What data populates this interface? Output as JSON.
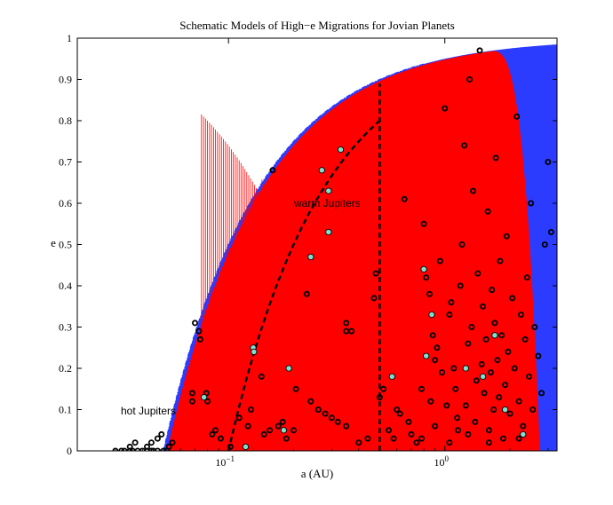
{
  "chart_data": {
    "type": "scatter",
    "title": "Schematic Models of High−e Migrations for Jovian Planets",
    "xlabel": "a (AU)",
    "ylabel": "e",
    "xscale": "log",
    "xlim": [
      0.02,
      3.3
    ],
    "ylim": [
      0,
      1
    ],
    "x_ticks": [
      {
        "value": 0.1,
        "base": "10",
        "exp": "−1"
      },
      {
        "value": 1,
        "base": "10",
        "exp": "0"
      }
    ],
    "y_ticks": [
      {
        "value": 0,
        "label": "0"
      },
      {
        "value": 0.1,
        "label": "0.1"
      },
      {
        "value": 0.2,
        "label": "0.2"
      },
      {
        "value": 0.3,
        "label": "0.3"
      },
      {
        "value": 0.4,
        "label": "0.4"
      },
      {
        "value": 0.5,
        "label": "0.5"
      },
      {
        "value": 0.6,
        "label": "0.6"
      },
      {
        "value": 0.7,
        "label": "0.7"
      },
      {
        "value": 0.8,
        "label": "0.8"
      },
      {
        "value": 0.9,
        "label": "0.9"
      },
      {
        "value": 1,
        "label": "1"
      }
    ],
    "annotations": [
      {
        "text": "hot Jupiters",
        "x": 0.033,
        "y": 0.1
      },
      {
        "text": "warm Jupiters",
        "x": 0.165,
        "y": 0.6
      }
    ],
    "regions": [
      {
        "name": "blue-envelope",
        "color": "#2b3cff",
        "periapse_au": 0.05
      },
      {
        "name": "red-envelope",
        "color": "#ff0000",
        "periapse_au": 0.052
      }
    ],
    "curves": [
      {
        "name": "dashed-periapse-track",
        "style": "dashed",
        "periapse_au": 0.1,
        "max_e": 0.89
      },
      {
        "name": "dashed-vertical",
        "style": "dashed",
        "x": 0.5,
        "y_range": [
          0,
          0.89
        ]
      }
    ],
    "series": [
      {
        "name": "black-circles",
        "marker": "circle-open",
        "color": "#000000",
        "points": [
          [
            0.03,
            0
          ],
          [
            0.032,
            0
          ],
          [
            0.033,
            0
          ],
          [
            0.035,
            0
          ],
          [
            0.036,
            0
          ],
          [
            0.038,
            0
          ],
          [
            0.04,
            0
          ],
          [
            0.042,
            0
          ],
          [
            0.044,
            0
          ],
          [
            0.045,
            0
          ],
          [
            0.047,
            0
          ],
          [
            0.05,
            0
          ],
          [
            0.052,
            0
          ],
          [
            0.035,
            0.01
          ],
          [
            0.037,
            0.02
          ],
          [
            0.042,
            0.01
          ],
          [
            0.044,
            0.02
          ],
          [
            0.047,
            0.03
          ],
          [
            0.049,
            0.04
          ],
          [
            0.053,
            0.01
          ],
          [
            0.055,
            0.02
          ],
          [
            0.068,
            0.14
          ],
          [
            0.068,
            0.12
          ],
          [
            0.07,
            0.31
          ],
          [
            0.073,
            0.29
          ],
          [
            0.074,
            0.27
          ],
          [
            0.079,
            0.14
          ],
          [
            0.08,
            0.12
          ],
          [
            0.084,
            0.04
          ],
          [
            0.087,
            0.05
          ],
          [
            0.092,
            0.03
          ],
          [
            0.102,
            0.01
          ],
          [
            0.112,
            0.08
          ],
          [
            0.123,
            0.06
          ],
          [
            0.127,
            0.1
          ],
          [
            0.142,
            0.18
          ],
          [
            0.146,
            0.04
          ],
          [
            0.155,
            0.05
          ],
          [
            0.16,
            0.68
          ],
          [
            0.17,
            0.06
          ],
          [
            0.178,
            0.07
          ],
          [
            0.185,
            0.03
          ],
          [
            0.2,
            0.05
          ],
          [
            0.205,
            0.15
          ],
          [
            0.23,
            0.38
          ],
          [
            0.24,
            0.12
          ],
          [
            0.26,
            0.1
          ],
          [
            0.28,
            0.09
          ],
          [
            0.3,
            0.08
          ],
          [
            0.32,
            0.07
          ],
          [
            0.35,
            0.06
          ],
          [
            0.35,
            0.31
          ],
          [
            0.35,
            0.29
          ],
          [
            0.37,
            0.29
          ],
          [
            0.4,
            0.02
          ],
          [
            0.44,
            0.03
          ],
          [
            0.47,
            0.37
          ],
          [
            0.48,
            0.43
          ],
          [
            0.5,
            0.13
          ],
          [
            0.52,
            0.15
          ],
          [
            0.55,
            0.05
          ],
          [
            0.58,
            0.03
          ],
          [
            0.6,
            0.1
          ],
          [
            0.62,
            0.09
          ],
          [
            0.65,
            0.61
          ],
          [
            0.68,
            0.07
          ],
          [
            0.7,
            0.04
          ],
          [
            0.74,
            0.02
          ],
          [
            0.78,
            0.03
          ],
          [
            0.8,
            0.55
          ],
          [
            0.82,
            0.42
          ],
          [
            0.85,
            0.38
          ],
          [
            0.88,
            0.28
          ],
          [
            0.9,
            0.22
          ],
          [
            0.92,
            0.25
          ],
          [
            0.95,
            0.46
          ],
          [
            0.97,
            0.19
          ],
          [
            1,
            0.83
          ],
          [
            1.02,
            0.11
          ],
          [
            1.05,
            0.33
          ],
          [
            1.07,
            0.36
          ],
          [
            1.1,
            0.2
          ],
          [
            1.12,
            0.15
          ],
          [
            1.14,
            0.08
          ],
          [
            1.18,
            0.4
          ],
          [
            1.2,
            0.5
          ],
          [
            1.23,
            0.74
          ],
          [
            1.25,
            0.11
          ],
          [
            1.28,
            0.26
          ],
          [
            1.3,
            0.9
          ],
          [
            1.33,
            0.3
          ],
          [
            1.35,
            0.63
          ],
          [
            1.38,
            0.07
          ],
          [
            1.4,
            0.17
          ],
          [
            1.42,
            0.43
          ],
          [
            1.45,
            0.97
          ],
          [
            1.48,
            0.21
          ],
          [
            1.5,
            0.35
          ],
          [
            1.52,
            0.14
          ],
          [
            1.55,
            0.27
          ],
          [
            1.58,
            0.58
          ],
          [
            1.6,
            0.05
          ],
          [
            1.63,
            0.19
          ],
          [
            1.65,
            0.39
          ],
          [
            1.68,
            0.1
          ],
          [
            1.7,
            0.31
          ],
          [
            1.72,
            0.71
          ],
          [
            1.75,
            0.22
          ],
          [
            1.78,
            0.13
          ],
          [
            1.8,
            0.46
          ],
          [
            1.83,
            0.28
          ],
          [
            1.86,
            0.03
          ],
          [
            1.9,
            0.16
          ],
          [
            1.93,
            0.52
          ],
          [
            1.96,
            0.24
          ],
          [
            2,
            0.09
          ],
          [
            2.05,
            0.37
          ],
          [
            2.1,
            0.2
          ],
          [
            2.15,
            0.81
          ],
          [
            2.2,
            0.12
          ],
          [
            2.25,
            0.33
          ],
          [
            2.3,
            0.06
          ],
          [
            2.35,
            0.27
          ],
          [
            2.4,
            0.42
          ],
          [
            2.45,
            0.18
          ],
          [
            2.5,
            0.6
          ],
          [
            2.55,
            0.1
          ],
          [
            2.6,
            0.3
          ],
          [
            2.7,
            0.23
          ],
          [
            2.8,
            0.14
          ],
          [
            2.9,
            0.5
          ],
          [
            3,
            0.7
          ],
          [
            3.1,
            0.53
          ],
          [
            1.15,
            0.05
          ],
          [
            1.28,
            0.04
          ],
          [
            1.6,
            0.02
          ],
          [
            2.2,
            0.03
          ],
          [
            0.9,
            0.06
          ],
          [
            1.05,
            0.02
          ],
          [
            0.78,
            0.15
          ],
          [
            0.86,
            0.12
          ]
        ]
      },
      {
        "name": "cyan-circles",
        "marker": "circle-filled",
        "color": "#7fe0d0",
        "points": [
          [
            0.077,
            0.13
          ],
          [
            0.13,
            0.25
          ],
          [
            0.131,
            0.24
          ],
          [
            0.18,
            0.05
          ],
          [
            0.19,
            0.2
          ],
          [
            0.24,
            0.47
          ],
          [
            0.27,
            0.68
          ],
          [
            0.29,
            0.63
          ],
          [
            0.29,
            0.53
          ],
          [
            0.33,
            0.73
          ],
          [
            0.12,
            0.01
          ],
          [
            0.57,
            0.18
          ],
          [
            0.8,
            0.44
          ],
          [
            0.87,
            0.33
          ],
          [
            1.25,
            0.2
          ],
          [
            1.5,
            0.18
          ],
          [
            0.82,
            0.23
          ],
          [
            1.7,
            0.28
          ],
          [
            2.3,
            0.04
          ],
          [
            1.9,
            0.1
          ]
        ]
      }
    ]
  }
}
